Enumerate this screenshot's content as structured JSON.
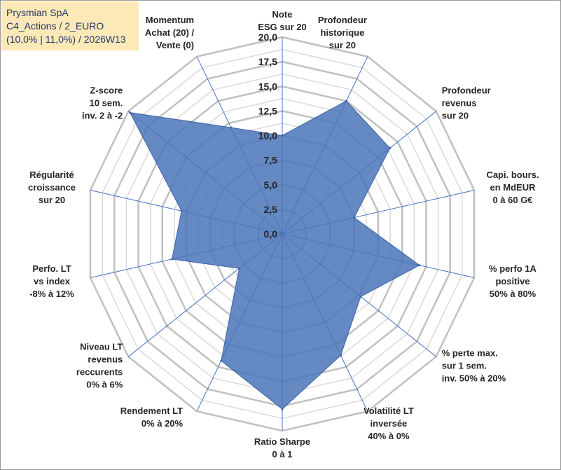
{
  "chart_data": {
    "type": "radar",
    "title": [
      "Prysmian SpA",
      "C4_Actions / 2_EURO",
      "(10,0% | 11,0%) / 2026W13"
    ],
    "rlim": [
      0,
      20
    ],
    "ticks": [
      "0,0",
      "2,5",
      "5,0",
      "7,5",
      "10,0",
      "12,5",
      "15,0",
      "17,5",
      "20,0"
    ],
    "axes": [
      {
        "label": [
          "Note",
          "ESG sur 20"
        ],
        "value": 10.0
      },
      {
        "label": [
          "Profondeur",
          "historique",
          "sur 20"
        ],
        "value": 15.0
      },
      {
        "label": [
          "Profondeur",
          "revenus",
          "sur 20"
        ],
        "value": 14.0
      },
      {
        "label": [
          "Capi. bours.",
          "en MdEUR",
          "0 à 60 G€"
        ],
        "value": 7.5
      },
      {
        "label": [
          "% perfo 1A",
          "positive",
          "50% à 80%"
        ],
        "value": 14.3
      },
      {
        "label": [
          "% perte max.",
          "sur 1 sem.",
          "inv. 50% à 20%"
        ],
        "value": 10.2
      },
      {
        "label": [
          "Volatilité LT",
          "inversée",
          "40% à 0%"
        ],
        "value": 13.7
      },
      {
        "label": [
          "Ratio Sharpe",
          "0 à 1"
        ],
        "value": 17.8
      },
      {
        "label": [
          "Rendement LT",
          "0% à 20%"
        ],
        "value": 14.3
      },
      {
        "label": [
          "Niveau LT",
          "revenus",
          "reccurents",
          "0% à 6%"
        ],
        "value": 5.6
      },
      {
        "label": [
          "Perfo. LT",
          "vs index",
          "-8% à 12%"
        ],
        "value": 11.5
      },
      {
        "label": [
          "Régularité",
          "croissance",
          "sur 20"
        ],
        "value": 10.5
      },
      {
        "label": [
          "Z-score",
          "10 sem.",
          "inv. 2 à -2"
        ],
        "value": 19.8
      },
      {
        "label": [
          "Momentum",
          "Achat (20) /",
          "Vente (0)"
        ],
        "value": 12.0
      }
    ],
    "colors": {
      "fill": "#4a74b8",
      "stroke": "#3b63a8",
      "grid_outer": "#c0c0c0",
      "grid_inner": "#d9d9d9",
      "spoke": "#4472c4"
    }
  }
}
